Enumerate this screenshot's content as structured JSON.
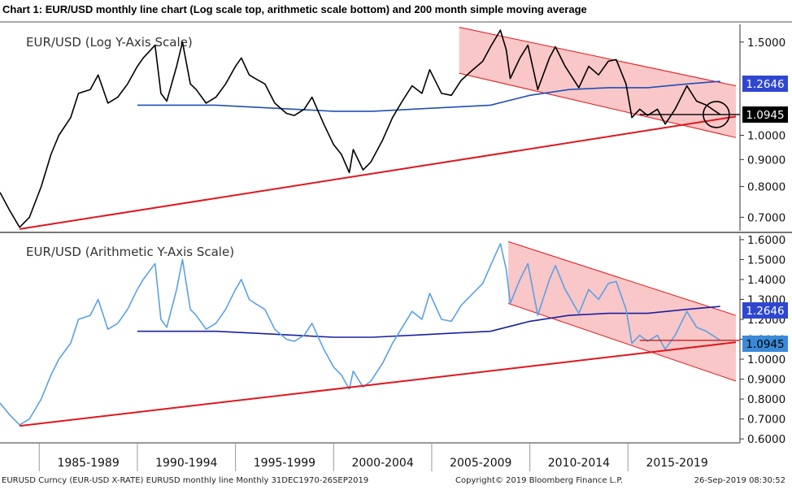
{
  "title": "Chart 1: EUR/USD monthly line chart (Log scale top, arithmetic scale bottom) and 200 month simple moving average",
  "colors": {
    "price_top": "#000000",
    "price_bottom": "#5aa0e6",
    "ma_top": "#1f4fb5",
    "ma_bottom": "#1a20a0",
    "trend": "#e0161b",
    "channel_fill": "#f7b4b4",
    "badge_ma": "#2f47d0",
    "badge_last_top": "#000000",
    "badge_last_bottom": "#3a8ad8"
  },
  "chart_data": [
    {
      "type": "line",
      "title": "EUR/USD (Log Y-Axis Scale)",
      "scale": "log",
      "ylim": [
        0.66,
        1.62
      ],
      "yticks": [
        "1.5000",
        "1.0000",
        "0.9000",
        "0.8000",
        "0.7000"
      ],
      "ytick_values": [
        1.5,
        1.0,
        0.9,
        0.8,
        0.7
      ],
      "x_periods": [
        "1985-1989",
        "1990-1994",
        "1995-1999",
        "2000-2004",
        "2005-2009",
        "2010-2014",
        "2015-2019"
      ],
      "xlim": [
        1983.0,
        2020.5
      ],
      "series": [
        {
          "name": "EUR/USD",
          "x": [
            1983.0,
            1983.5,
            1984.0,
            1984.5,
            1985.1,
            1985.6,
            1986.0,
            1986.6,
            1987.0,
            1987.6,
            1988.0,
            1988.5,
            1989.0,
            1989.5,
            1990.0,
            1990.3,
            1990.9,
            1991.2,
            1991.5,
            1992.0,
            1992.3,
            1992.7,
            1993.0,
            1993.5,
            1994.0,
            1994.5,
            1995.0,
            1995.3,
            1995.7,
            1996.0,
            1996.5,
            1997.0,
            1997.6,
            1998.0,
            1998.5,
            1998.9,
            1999.5,
            2000.0,
            2000.4,
            2000.8,
            2001.0,
            2001.5,
            2001.9,
            2002.5,
            2003.0,
            2003.5,
            2004.0,
            2004.5,
            2004.9,
            2005.5,
            2006.0,
            2006.5,
            2007.0,
            2007.6,
            2008.0,
            2008.5,
            2008.8,
            2009.0,
            2009.5,
            2009.9,
            2010.4,
            2011.0,
            2011.3,
            2011.8,
            2012.5,
            2013.0,
            2013.5,
            2014.0,
            2014.4,
            2014.9,
            2015.2,
            2015.6,
            2016.0,
            2016.5,
            2016.9,
            2017.4,
            2018.0,
            2018.5,
            2019.0,
            2019.3,
            2019.7
          ],
          "y": [
            0.78,
            0.72,
            0.67,
            0.7,
            0.8,
            0.92,
            1.0,
            1.08,
            1.2,
            1.22,
            1.3,
            1.15,
            1.18,
            1.25,
            1.35,
            1.4,
            1.48,
            1.2,
            1.16,
            1.35,
            1.5,
            1.25,
            1.22,
            1.15,
            1.18,
            1.25,
            1.35,
            1.4,
            1.3,
            1.28,
            1.25,
            1.15,
            1.1,
            1.09,
            1.12,
            1.18,
            1.05,
            0.96,
            0.92,
            0.85,
            0.94,
            0.86,
            0.89,
            0.98,
            1.08,
            1.16,
            1.24,
            1.2,
            1.33,
            1.2,
            1.19,
            1.27,
            1.32,
            1.38,
            1.47,
            1.58,
            1.45,
            1.28,
            1.4,
            1.48,
            1.22,
            1.4,
            1.47,
            1.35,
            1.23,
            1.35,
            1.3,
            1.38,
            1.39,
            1.25,
            1.08,
            1.12,
            1.09,
            1.12,
            1.05,
            1.12,
            1.24,
            1.16,
            1.14,
            1.12,
            1.0945
          ]
        },
        {
          "name": "200 month simple moving average",
          "x": [
            1990.0,
            1992.0,
            1994.0,
            1996.0,
            1998.0,
            2000.0,
            2002.0,
            2004.0,
            2006.0,
            2008.0,
            2010.0,
            2012.0,
            2014.0,
            2016.0,
            2018.0,
            2019.7
          ],
          "y": [
            1.14,
            1.14,
            1.14,
            1.13,
            1.12,
            1.11,
            1.11,
            1.12,
            1.13,
            1.14,
            1.19,
            1.22,
            1.23,
            1.23,
            1.25,
            1.2646
          ]
        }
      ],
      "annotations": {
        "ma_last": "1.2646",
        "last": "1.0945"
      }
    },
    {
      "type": "line",
      "title": "EUR/USD (Arithmetic Y-Axis Scale)",
      "scale": "linear",
      "ylim": [
        0.58,
        1.62
      ],
      "yticks": [
        "1.6000",
        "1.5000",
        "1.4000",
        "1.3000",
        "1.2000",
        "1.1000",
        "1.0000",
        "0.9000",
        "0.8000",
        "0.7000",
        "0.6000"
      ],
      "ytick_values": [
        1.6,
        1.5,
        1.4,
        1.3,
        1.2,
        1.1,
        1.0,
        0.9,
        0.8,
        0.7,
        0.6
      ],
      "x_periods": [
        "1985-1989",
        "1990-1994",
        "1995-1999",
        "2000-2004",
        "2005-2009",
        "2010-2014",
        "2015-2019"
      ],
      "xlim": [
        1983.0,
        2020.5
      ],
      "series": [
        {
          "name": "EUR/USD",
          "x": [
            1983.0,
            1983.5,
            1984.0,
            1984.5,
            1985.1,
            1985.6,
            1986.0,
            1986.6,
            1987.0,
            1987.6,
            1988.0,
            1988.5,
            1989.0,
            1989.5,
            1990.0,
            1990.3,
            1990.9,
            1991.2,
            1991.5,
            1992.0,
            1992.3,
            1992.7,
            1993.0,
            1993.5,
            1994.0,
            1994.5,
            1995.0,
            1995.3,
            1995.7,
            1996.0,
            1996.5,
            1997.0,
            1997.6,
            1998.0,
            1998.5,
            1998.9,
            1999.5,
            2000.0,
            2000.4,
            2000.8,
            2001.0,
            2001.5,
            2001.9,
            2002.5,
            2003.0,
            2003.5,
            2004.0,
            2004.5,
            2004.9,
            2005.5,
            2006.0,
            2006.5,
            2007.0,
            2007.6,
            2008.0,
            2008.5,
            2008.8,
            2009.0,
            2009.5,
            2009.9,
            2010.4,
            2011.0,
            2011.3,
            2011.8,
            2012.5,
            2013.0,
            2013.5,
            2014.0,
            2014.4,
            2014.9,
            2015.2,
            2015.6,
            2016.0,
            2016.5,
            2016.9,
            2017.4,
            2018.0,
            2018.5,
            2019.0,
            2019.3,
            2019.7
          ],
          "y": [
            0.78,
            0.72,
            0.67,
            0.7,
            0.8,
            0.92,
            1.0,
            1.08,
            1.2,
            1.22,
            1.3,
            1.15,
            1.18,
            1.25,
            1.35,
            1.4,
            1.48,
            1.2,
            1.16,
            1.35,
            1.5,
            1.25,
            1.22,
            1.15,
            1.18,
            1.25,
            1.35,
            1.4,
            1.3,
            1.28,
            1.25,
            1.15,
            1.1,
            1.09,
            1.12,
            1.18,
            1.05,
            0.96,
            0.92,
            0.85,
            0.94,
            0.86,
            0.89,
            0.98,
            1.08,
            1.16,
            1.24,
            1.2,
            1.33,
            1.2,
            1.19,
            1.27,
            1.32,
            1.38,
            1.47,
            1.58,
            1.45,
            1.28,
            1.4,
            1.48,
            1.22,
            1.4,
            1.47,
            1.35,
            1.23,
            1.35,
            1.3,
            1.38,
            1.39,
            1.25,
            1.08,
            1.12,
            1.09,
            1.12,
            1.05,
            1.12,
            1.24,
            1.16,
            1.14,
            1.12,
            1.0945
          ]
        },
        {
          "name": "200 month simple moving average",
          "x": [
            1990.0,
            1992.0,
            1994.0,
            1996.0,
            1998.0,
            2000.0,
            2002.0,
            2004.0,
            2006.0,
            2008.0,
            2010.0,
            2012.0,
            2014.0,
            2016.0,
            2018.0,
            2019.7
          ],
          "y": [
            1.14,
            1.14,
            1.14,
            1.13,
            1.12,
            1.11,
            1.11,
            1.12,
            1.13,
            1.14,
            1.19,
            1.22,
            1.23,
            1.23,
            1.25,
            1.2646
          ]
        }
      ],
      "annotations": {
        "ma_last": "1.2646",
        "last": "1.0945"
      }
    }
  ],
  "footer": {
    "source": "EURUSD Curncy (EUR-USD X-RATE) EURUSD monthly line  Monthly 31DEC1970-26SEP2019",
    "copyright": "Copyright© 2019 Bloomberg Finance L.P.",
    "timestamp": "26-Sep-2019 08:30:52"
  }
}
